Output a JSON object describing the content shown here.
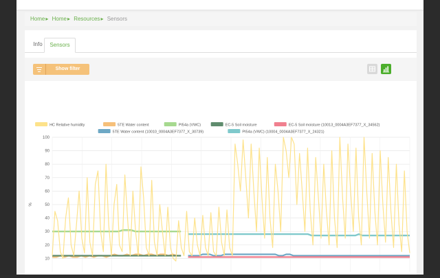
{
  "breadcrumb": {
    "items": [
      "Home",
      "Home",
      "Resources"
    ],
    "current": "Sensors"
  },
  "tabs": [
    {
      "label": "Info",
      "active": false
    },
    {
      "label": "Sensors",
      "active": true
    }
  ],
  "toolbar": {
    "filter_label": "Show filter",
    "filter_icon": "filter-icon",
    "table_icon": "table-icon",
    "chart_icon": "bar-chart-icon",
    "accent": "#4cae2c"
  },
  "chart_data": {
    "type": "line",
    "ylabel": "%",
    "ylim": [
      0,
      100
    ],
    "yticks": [
      10,
      20,
      30,
      40,
      50,
      60,
      70,
      80,
      90,
      100
    ],
    "grid": true,
    "legend_position": "top",
    "series": [
      {
        "name": "HC Relative humidity",
        "color": "#fde28a",
        "values": [
          12,
          45,
          38,
          15,
          10,
          40,
          55,
          20,
          12,
          35,
          60,
          25,
          14,
          70,
          22,
          12,
          65,
          75,
          30,
          15,
          80,
          35,
          12,
          50,
          65,
          20,
          15,
          72,
          40,
          12,
          60,
          30,
          12,
          78,
          55,
          18,
          12,
          68,
          22,
          12,
          50,
          30,
          12,
          48,
          18,
          10,
          8,
          38,
          18,
          12,
          45,
          15,
          12,
          40,
          20,
          12,
          42,
          18,
          12,
          44,
          15,
          12,
          48,
          22,
          12,
          46,
          18,
          12,
          95,
          80,
          60,
          98,
          70,
          40,
          95,
          60,
          30,
          92,
          55,
          25,
          85,
          40,
          18,
          80,
          60,
          30,
          100,
          90,
          70,
          100,
          95,
          50,
          88,
          60,
          30,
          92,
          45,
          20,
          85,
          55,
          25,
          80,
          45,
          20,
          90,
          40,
          18,
          100,
          55,
          25,
          95,
          60,
          30,
          92,
          40,
          20,
          100,
          60,
          25,
          88,
          45,
          20,
          90,
          50,
          22,
          85,
          45,
          18,
          80,
          35,
          15,
          75,
          30,
          14
        ]
      },
      {
        "name": "5TE Water content",
        "color": "#f6c07a",
        "values": [
          11,
          11,
          12,
          11,
          12,
          11,
          11,
          12,
          11,
          12,
          11,
          12,
          12,
          11,
          12,
          13,
          12,
          12,
          13,
          12,
          13,
          13,
          12,
          13,
          13,
          12,
          13,
          13,
          12,
          13,
          12,
          12
        ]
      },
      {
        "name": "PI54a (VWC)",
        "color": "#a6d98f",
        "values": [
          30,
          30,
          30,
          30,
          30,
          30,
          30,
          30,
          30,
          30,
          30,
          30,
          30,
          30,
          30,
          30,
          30,
          31,
          31,
          31,
          30,
          30,
          30,
          30,
          30,
          30,
          30,
          30,
          30,
          30,
          30,
          30
        ]
      },
      {
        "name": "EC-5 Soil moisture",
        "color": "#5f8c6e",
        "values": [
          12,
          12,
          12,
          12,
          12,
          12,
          12,
          12,
          12,
          12,
          12,
          12,
          12,
          12,
          12,
          12,
          12,
          12,
          12,
          12,
          12,
          12,
          12,
          12,
          12,
          12,
          12,
          12,
          12,
          12,
          12,
          12
        ]
      },
      {
        "name": "EC-5 Soil moisture (10013_0004A3EF7377_X_34562)",
        "color": "#f0808f",
        "values": [
          11,
          11,
          11,
          11,
          11,
          11,
          11,
          11,
          11,
          11,
          11,
          11,
          11,
          11,
          11,
          11,
          11,
          11,
          11,
          11,
          11,
          11,
          11,
          11,
          11,
          11,
          11,
          11,
          11,
          11,
          11,
          11,
          11,
          11,
          11,
          11,
          11,
          11,
          11,
          11,
          11,
          11,
          11,
          11,
          11,
          11,
          11,
          11,
          11,
          11,
          11,
          11,
          11,
          11,
          11,
          11,
          11,
          11,
          11,
          11,
          11,
          11
        ]
      },
      {
        "name": "5TE Water content (10010_0004A3EF7377_X_30739)",
        "color": "#6ea8c5",
        "values": [
          12,
          12,
          12,
          12,
          13,
          13,
          13,
          12,
          12,
          12,
          13,
          13,
          13,
          13,
          13,
          13,
          13,
          13,
          13,
          13,
          13,
          13,
          13,
          13,
          13,
          12,
          12,
          13,
          13,
          12,
          12,
          12,
          12,
          12,
          12,
          12,
          12,
          12,
          12,
          12,
          12,
          12,
          12,
          12,
          12,
          12,
          12,
          12,
          12,
          12,
          12,
          12,
          12,
          12,
          12,
          12,
          12,
          12,
          12,
          12,
          12,
          12
        ]
      },
      {
        "name": "PI54a (VWC) (10004_0004A3EF7377_X_24321)",
        "color": "#7fc9cc",
        "values": [
          28,
          28,
          28,
          28,
          28,
          28,
          28,
          28,
          28,
          28,
          28,
          28,
          28,
          28,
          28,
          28,
          28,
          28,
          28,
          28,
          28,
          28,
          28,
          28,
          28,
          28,
          28,
          28,
          28,
          28,
          28,
          28,
          28,
          28,
          27,
          27,
          27,
          27,
          27,
          27,
          27,
          27,
          27,
          27,
          27,
          27,
          27,
          28,
          27,
          27,
          27,
          27,
          27,
          27,
          27,
          27,
          27,
          27,
          27,
          27,
          27,
          27
        ]
      }
    ]
  }
}
